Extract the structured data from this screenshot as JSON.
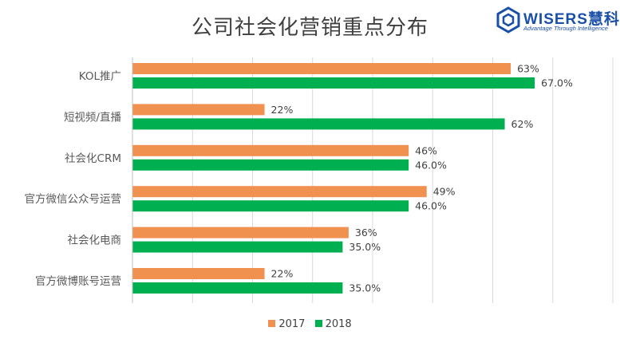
{
  "chart_data": {
    "type": "bar",
    "orientation": "horizontal",
    "title": "公司社会化营销重点分布",
    "categories": [
      "KOL推广",
      "短视频/直播",
      "社会化CRM",
      "官方微信公众号运营",
      "社会化电商",
      "官方微博账号运营"
    ],
    "series": [
      {
        "name": "2017",
        "color": "#f0914f",
        "values": [
          63,
          22,
          46,
          49,
          36,
          22
        ],
        "labels": [
          "63%",
          "22%",
          "46%",
          "49%",
          "36%",
          "22%"
        ]
      },
      {
        "name": "2018",
        "color": "#00b050",
        "values": [
          67,
          62,
          46,
          46,
          35,
          35
        ],
        "labels": [
          "67.0%",
          "62%",
          "46.0%",
          "46.0%",
          "35.0%",
          "35.0%"
        ]
      }
    ],
    "xlim": [
      0,
      80
    ],
    "grid": true,
    "legend": "bottom"
  },
  "logo": {
    "name": "WISERS慧科",
    "tagline": "Advantage Through Intelligence",
    "color": "#1a4fa8"
  }
}
